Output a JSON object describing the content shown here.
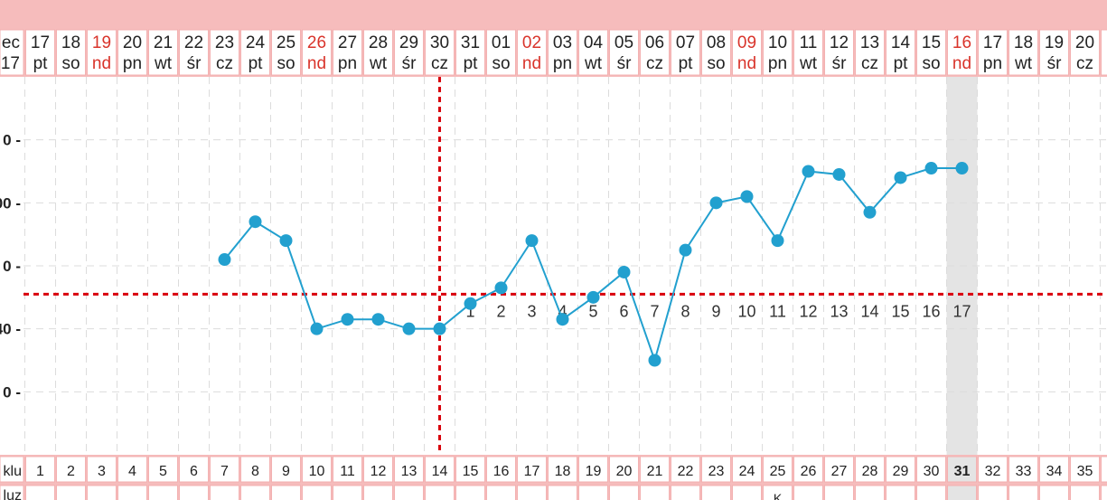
{
  "header": {
    "month_label_top": "ec",
    "month_label_bottom": "17"
  },
  "dates": [
    {
      "day": "17",
      "weekday": "pt",
      "sunday": false
    },
    {
      "day": "18",
      "weekday": "so",
      "sunday": false
    },
    {
      "day": "19",
      "weekday": "nd",
      "sunday": true
    },
    {
      "day": "20",
      "weekday": "pn",
      "sunday": false
    },
    {
      "day": "21",
      "weekday": "wt",
      "sunday": false
    },
    {
      "day": "22",
      "weekday": "śr",
      "sunday": false
    },
    {
      "day": "23",
      "weekday": "cz",
      "sunday": false
    },
    {
      "day": "24",
      "weekday": "pt",
      "sunday": false
    },
    {
      "day": "25",
      "weekday": "so",
      "sunday": false
    },
    {
      "day": "26",
      "weekday": "nd",
      "sunday": true
    },
    {
      "day": "27",
      "weekday": "pn",
      "sunday": false
    },
    {
      "day": "28",
      "weekday": "wt",
      "sunday": false
    },
    {
      "day": "29",
      "weekday": "śr",
      "sunday": false
    },
    {
      "day": "30",
      "weekday": "cz",
      "sunday": false
    },
    {
      "day": "31",
      "weekday": "pt",
      "sunday": false
    },
    {
      "day": "01",
      "weekday": "so",
      "sunday": false
    },
    {
      "day": "02",
      "weekday": "nd",
      "sunday": true
    },
    {
      "day": "03",
      "weekday": "pn",
      "sunday": false
    },
    {
      "day": "04",
      "weekday": "wt",
      "sunday": false
    },
    {
      "day": "05",
      "weekday": "śr",
      "sunday": false
    },
    {
      "day": "06",
      "weekday": "cz",
      "sunday": false
    },
    {
      "day": "07",
      "weekday": "pt",
      "sunday": false
    },
    {
      "day": "08",
      "weekday": "so",
      "sunday": false
    },
    {
      "day": "09",
      "weekday": "nd",
      "sunday": true
    },
    {
      "day": "10",
      "weekday": "pn",
      "sunday": false
    },
    {
      "day": "11",
      "weekday": "wt",
      "sunday": false
    },
    {
      "day": "12",
      "weekday": "śr",
      "sunday": false
    },
    {
      "day": "13",
      "weekday": "cz",
      "sunday": false
    },
    {
      "day": "14",
      "weekday": "pt",
      "sunday": false
    },
    {
      "day": "15",
      "weekday": "so",
      "sunday": false
    },
    {
      "day": "16",
      "weekday": "nd",
      "sunday": true
    },
    {
      "day": "17",
      "weekday": "pn",
      "sunday": false
    },
    {
      "day": "18",
      "weekday": "wt",
      "sunday": false
    },
    {
      "day": "19",
      "weekday": "śr",
      "sunday": false
    },
    {
      "day": "20",
      "weekday": "cz",
      "sunday": false
    }
  ],
  "cycle_row": {
    "label": "klu",
    "days": [
      "1",
      "2",
      "3",
      "4",
      "5",
      "6",
      "7",
      "8",
      "9",
      "10",
      "11",
      "12",
      "13",
      "14",
      "15",
      "16",
      "17",
      "18",
      "19",
      "20",
      "21",
      "22",
      "23",
      "24",
      "25",
      "26",
      "27",
      "28",
      "29",
      "30",
      "31",
      "32",
      "33",
      "34",
      "35"
    ]
  },
  "second_row": {
    "label": "luz",
    "mark_text": "K"
  },
  "y_tick_labels": [
    "0 -",
    "00 -",
    "0 -",
    "40 -",
    "0 -"
  ],
  "highlight_day_index": 30,
  "colors": {
    "band": "#f6bcbc",
    "cell_border": "#f3b1b1",
    "sunday_text": "#d9342b",
    "normal_text": "#222222",
    "series": "#22a0cf",
    "coverline": "#d9000d",
    "highlight": "#e4e4e4"
  },
  "chart_data": {
    "type": "line",
    "x": [
      7,
      8,
      9,
      10,
      11,
      12,
      13,
      14,
      15,
      16,
      17,
      18,
      19,
      20,
      21,
      22,
      23,
      24,
      25,
      26,
      27,
      28,
      29,
      30,
      31
    ],
    "series": [
      {
        "values": [
          36.62,
          36.74,
          36.68,
          36.4,
          36.43,
          36.43,
          36.4,
          36.4,
          36.48,
          36.53,
          36.68,
          36.43,
          36.5,
          36.58,
          36.3,
          36.65,
          36.8,
          36.82,
          36.68,
          36.9,
          36.89,
          36.77,
          36.88,
          36.91,
          36.91
        ]
      }
    ],
    "coverline_y": 36.51,
    "ovulation_day": 14,
    "luteal_labels": [
      {
        "day": 15,
        "text": "1"
      },
      {
        "day": 16,
        "text": "2"
      },
      {
        "day": 17,
        "text": "3"
      },
      {
        "day": 18,
        "text": "4"
      },
      {
        "day": 19,
        "text": "5"
      },
      {
        "day": 20,
        "text": "6"
      },
      {
        "day": 21,
        "text": "7"
      },
      {
        "day": 22,
        "text": "8"
      },
      {
        "day": 23,
        "text": "9"
      },
      {
        "day": 24,
        "text": "10"
      },
      {
        "day": 25,
        "text": "11"
      },
      {
        "day": 26,
        "text": "12"
      },
      {
        "day": 27,
        "text": "13"
      },
      {
        "day": 28,
        "text": "14"
      },
      {
        "day": 29,
        "text": "15"
      },
      {
        "day": 30,
        "text": "16"
      },
      {
        "day": 31,
        "text": "17"
      }
    ],
    "ylim": [
      36.0,
      37.2
    ],
    "grid": true
  }
}
